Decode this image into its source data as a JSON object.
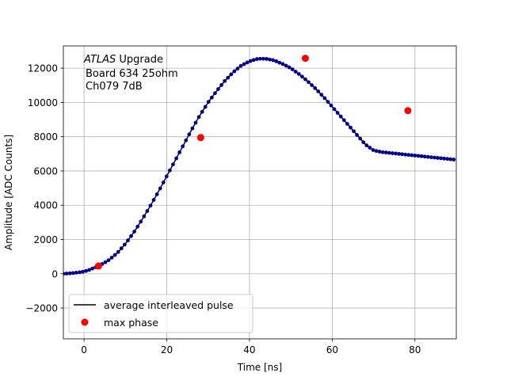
{
  "chart_data": {
    "type": "scatter",
    "title": "",
    "xlabel": "Time [ns]",
    "ylabel": "Amplitude [ADC Counts]",
    "xlim": [
      -5,
      90
    ],
    "ylim": [
      -3800,
      13300
    ],
    "xticks": [
      0,
      20,
      40,
      60,
      80
    ],
    "yticks": [
      -2000,
      0,
      2000,
      4000,
      6000,
      8000,
      10000,
      12000
    ],
    "grid": true,
    "legend_position": "bottom-left",
    "annotation": {
      "line1_italic": "ATLAS",
      "line1_rest": " Upgrade",
      "line2": "Board 634 25ohm",
      "line3": "Ch079 7dB"
    },
    "series": [
      {
        "name": "average interleaved pulse",
        "kind": "line+markers",
        "line_color": "#000000",
        "marker_color": "#00008b",
        "x": [
          -5,
          -3,
          -1,
          0,
          1,
          2,
          3,
          4,
          5,
          6,
          8,
          10,
          12,
          14,
          16,
          18,
          20,
          22,
          24,
          26,
          28,
          30,
          32,
          34,
          36,
          38,
          40,
          42,
          44,
          46,
          48,
          50,
          52,
          54,
          56,
          58,
          60,
          62,
          64,
          66,
          68,
          70,
          72,
          74,
          76,
          78,
          80,
          82,
          84,
          86,
          88,
          90
        ],
        "y": [
          0,
          30,
          90,
          130,
          200,
          300,
          400,
          520,
          650,
          800,
          1200,
          1750,
          2400,
          3150,
          3950,
          4800,
          5700,
          6600,
          7500,
          8400,
          9250,
          10000,
          10650,
          11250,
          11750,
          12150,
          12400,
          12550,
          12550,
          12450,
          12250,
          12000,
          11650,
          11250,
          10800,
          10300,
          9750,
          9200,
          8650,
          8100,
          7550,
          7200,
          7100,
          7050,
          7000,
          6950,
          6900,
          6850,
          6800,
          6750,
          6700,
          6650
        ]
      },
      {
        "name": "max phase",
        "kind": "markers",
        "marker_color": "#ff0000",
        "x": [
          3.5,
          28.2,
          53.5,
          78.3
        ],
        "y": [
          450,
          7950,
          12580,
          9520
        ]
      }
    ]
  }
}
